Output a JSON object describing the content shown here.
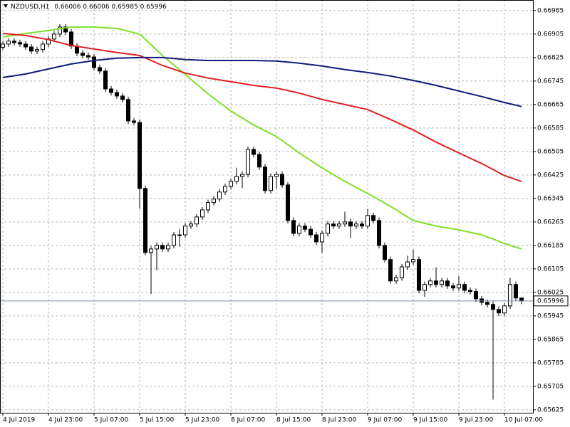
{
  "chart_data": {
    "type": "candlestick",
    "symbol": "NZDUSD,H1",
    "categories": [
      "4 Jul 2019",
      null,
      null,
      null,
      null,
      null,
      null,
      null,
      "4 Jul 23:00",
      null,
      null,
      null,
      null,
      null,
      null,
      null,
      "5 Jul 07:00",
      null,
      null,
      null,
      null,
      null,
      null,
      null,
      "5 Jul 15:00",
      null,
      null,
      null,
      null,
      null,
      null,
      null,
      "5 Jul 23:00",
      null,
      null,
      null,
      null,
      null,
      null,
      null,
      "8 Jul 07:00",
      null,
      null,
      null,
      null,
      null,
      null,
      null,
      "8 Jul 15:00",
      null,
      null,
      null,
      null,
      null,
      null,
      null,
      "8 Jul 23:00",
      null,
      null,
      null,
      null,
      null,
      null,
      null,
      "9 Jul 07:00",
      null,
      null,
      null,
      null,
      null,
      null,
      null,
      "9 Jul 15:00",
      null,
      null,
      null,
      null,
      null,
      null,
      null,
      "9 Jul 23:00",
      null,
      null,
      null,
      null,
      null,
      null,
      null,
      "10 Jul 07:00",
      null,
      null,
      null
    ],
    "open": [
      0.6686,
      0.66871,
      0.66881,
      0.66876,
      0.66871,
      0.66861,
      0.66847,
      0.66852,
      0.66871,
      0.66888,
      0.66905,
      0.66929,
      0.66912,
      0.66864,
      0.6684,
      0.66832,
      0.66827,
      0.66791,
      0.66779,
      0.66718,
      0.66706,
      0.66694,
      0.66682,
      0.66609,
      0.66604,
      0.66379,
      0.66161,
      0.66173,
      0.66185,
      0.66173,
      0.66185,
      0.66221,
      0.66221,
      0.66251,
      0.66258,
      0.66282,
      0.66306,
      0.66331,
      0.66343,
      0.66367,
      0.66386,
      0.66403,
      0.6642,
      0.66427,
      0.66512,
      0.66495,
      0.66452,
      0.66372,
      0.6642,
      0.66427,
      0.66391,
      0.6627,
      0.66226,
      0.66251,
      0.6624,
      0.66221,
      0.66197,
      0.66226,
      0.66258,
      0.66251,
      0.66258,
      0.66265,
      0.66251,
      0.66258,
      0.66251,
      0.66287,
      0.6627,
      0.66185,
      0.66137,
      0.66064,
      0.66075,
      0.66112,
      0.66129,
      0.66137,
      0.66032,
      0.66052,
      0.66064,
      0.66052,
      0.66064,
      0.66047,
      0.6604,
      0.66052,
      0.66032,
      0.66028,
      0.66003,
      0.65991,
      0.65984,
      0.65967,
      0.65955,
      0.65979,
      0.66052,
      0.66006
    ],
    "high": [
      0.66881,
      0.66891,
      0.66891,
      0.66886,
      0.66881,
      0.66871,
      0.66862,
      0.66881,
      0.66898,
      0.66915,
      0.66939,
      0.66939,
      0.66922,
      0.66874,
      0.6685,
      0.66842,
      0.66837,
      0.66801,
      0.66789,
      0.66728,
      0.66716,
      0.66704,
      0.66692,
      0.66619,
      0.66614,
      0.66389,
      0.66183,
      0.66195,
      0.66195,
      0.66195,
      0.66231,
      0.66241,
      0.66261,
      0.66268,
      0.66292,
      0.66316,
      0.66341,
      0.66353,
      0.66377,
      0.66396,
      0.66413,
      0.6645,
      0.66437,
      0.66522,
      0.66522,
      0.66505,
      0.66462,
      0.6643,
      0.66437,
      0.66437,
      0.66401,
      0.6628,
      0.66261,
      0.66261,
      0.6625,
      0.66231,
      0.66236,
      0.66268,
      0.66268,
      0.66268,
      0.663,
      0.66275,
      0.66268,
      0.66268,
      0.6631,
      0.66297,
      0.6628,
      0.66195,
      0.66147,
      0.66085,
      0.66122,
      0.6615,
      0.6617,
      0.66147,
      0.66062,
      0.66074,
      0.6611,
      0.66074,
      0.66074,
      0.66057,
      0.6608,
      0.66062,
      0.66042,
      0.66038,
      0.66013,
      0.66001,
      0.65994,
      0.65977,
      0.65989,
      0.66075,
      0.66062,
      0.66006
    ],
    "low": [
      0.6685,
      0.66861,
      0.66866,
      0.66861,
      0.66851,
      0.66837,
      0.66837,
      0.66842,
      0.66861,
      0.66878,
      0.66895,
      0.66902,
      0.66854,
      0.6683,
      0.66822,
      0.66817,
      0.66781,
      0.66769,
      0.66708,
      0.66696,
      0.66684,
      0.66672,
      0.66599,
      0.66594,
      0.6631,
      0.66151,
      0.6602,
      0.661,
      0.66163,
      0.66163,
      0.66175,
      0.6618,
      0.66211,
      0.66241,
      0.66248,
      0.66272,
      0.66296,
      0.66321,
      0.66333,
      0.66357,
      0.66376,
      0.66393,
      0.6638,
      0.66417,
      0.66485,
      0.66442,
      0.66362,
      0.66362,
      0.6638,
      0.66381,
      0.6626,
      0.66216,
      0.66216,
      0.6623,
      0.66211,
      0.66187,
      0.6616,
      0.66216,
      0.66241,
      0.66241,
      0.66248,
      0.6621,
      0.66241,
      0.66241,
      0.66241,
      0.6626,
      0.66175,
      0.66127,
      0.66054,
      0.66054,
      0.66065,
      0.66102,
      0.66119,
      0.66022,
      0.6601,
      0.66042,
      0.66042,
      0.66042,
      0.66037,
      0.6603,
      0.6603,
      0.66022,
      0.66018,
      0.65993,
      0.65981,
      0.65974,
      0.6566,
      0.65945,
      0.65945,
      0.65969,
      0.65996,
      0.65985
    ],
    "close": [
      0.66871,
      0.66881,
      0.66876,
      0.66871,
      0.66861,
      0.66847,
      0.66852,
      0.66871,
      0.66888,
      0.66905,
      0.66929,
      0.66912,
      0.66864,
      0.6684,
      0.66832,
      0.66827,
      0.66791,
      0.66779,
      0.66718,
      0.66706,
      0.66694,
      0.66682,
      0.66609,
      0.66604,
      0.66379,
      0.66161,
      0.66173,
      0.66185,
      0.66173,
      0.66185,
      0.66221,
      0.66221,
      0.66251,
      0.66258,
      0.66282,
      0.66306,
      0.66331,
      0.66343,
      0.66367,
      0.66386,
      0.66403,
      0.6642,
      0.66427,
      0.66512,
      0.66495,
      0.66452,
      0.66372,
      0.6642,
      0.66427,
      0.66391,
      0.6627,
      0.66226,
      0.66251,
      0.6624,
      0.66221,
      0.66197,
      0.66226,
      0.66258,
      0.66251,
      0.66258,
      0.66265,
      0.66251,
      0.66258,
      0.66251,
      0.66287,
      0.6627,
      0.66185,
      0.66137,
      0.66064,
      0.66075,
      0.66112,
      0.66129,
      0.66137,
      0.66032,
      0.66052,
      0.66064,
      0.66052,
      0.66064,
      0.66047,
      0.6604,
      0.66052,
      0.66032,
      0.66028,
      0.66003,
      0.65991,
      0.65984,
      0.65967,
      0.65955,
      0.65979,
      0.66052,
      0.66006,
      0.65996
    ],
    "bull_color": "#ffffff",
    "bear_color": "#000000",
    "lines": [
      {
        "color": "#7fe02c",
        "x": [
          0,
          4,
          8,
          12,
          16,
          20,
          24,
          28,
          32,
          36,
          40,
          44,
          48,
          52,
          56,
          60,
          64,
          68,
          72,
          76,
          80,
          84,
          88,
          91
        ],
        "values": [
          0.66895,
          0.66907,
          0.66917,
          0.66929,
          0.66929,
          0.66924,
          0.66905,
          0.66832,
          0.66767,
          0.66701,
          0.66643,
          0.66595,
          0.66556,
          0.665,
          0.66449,
          0.66403,
          0.66362,
          0.66318,
          0.6627,
          0.66251,
          0.66238,
          0.66221,
          0.66192,
          0.66173
        ]
      },
      {
        "color": "#e02020",
        "x": [
          0,
          4,
          8,
          12,
          16,
          20,
          24,
          28,
          32,
          36,
          40,
          44,
          48,
          52,
          56,
          60,
          64,
          68,
          72,
          76,
          80,
          84,
          88,
          91
        ],
        "values": [
          0.66907,
          0.669,
          0.66886,
          0.66866,
          0.66854,
          0.66842,
          0.66832,
          0.66798,
          0.66772,
          0.66755,
          0.66743,
          0.6673,
          0.66721,
          0.66704,
          0.66682,
          0.66665,
          0.66648,
          0.66614,
          0.66578,
          0.66537,
          0.665,
          0.66464,
          0.66423,
          0.66403
        ]
      },
      {
        "color": "#101c7a",
        "x": [
          0,
          4,
          8,
          12,
          16,
          20,
          24,
          28,
          32,
          36,
          40,
          44,
          48,
          52,
          56,
          60,
          64,
          68,
          72,
          76,
          80,
          84,
          88,
          91
        ],
        "values": [
          0.66757,
          0.66769,
          0.66786,
          0.66803,
          0.66815,
          0.66823,
          0.66825,
          0.66825,
          0.66818,
          0.66815,
          0.66815,
          0.66815,
          0.66813,
          0.66806,
          0.66796,
          0.66784,
          0.66774,
          0.66762,
          0.66747,
          0.6673,
          0.66711,
          0.66692,
          0.66672,
          0.66658
        ]
      }
    ],
    "ylim": [
      0.65615,
      0.67021
    ],
    "yticks": [
      0.66985,
      0.66905,
      0.66825,
      0.66745,
      0.66665,
      0.66585,
      0.66505,
      0.66425,
      0.66345,
      0.66265,
      0.66185,
      0.66105,
      0.66025,
      0.65945,
      0.65865,
      0.65785,
      0.65705,
      0.65625
    ],
    "grid": true
  }
}
